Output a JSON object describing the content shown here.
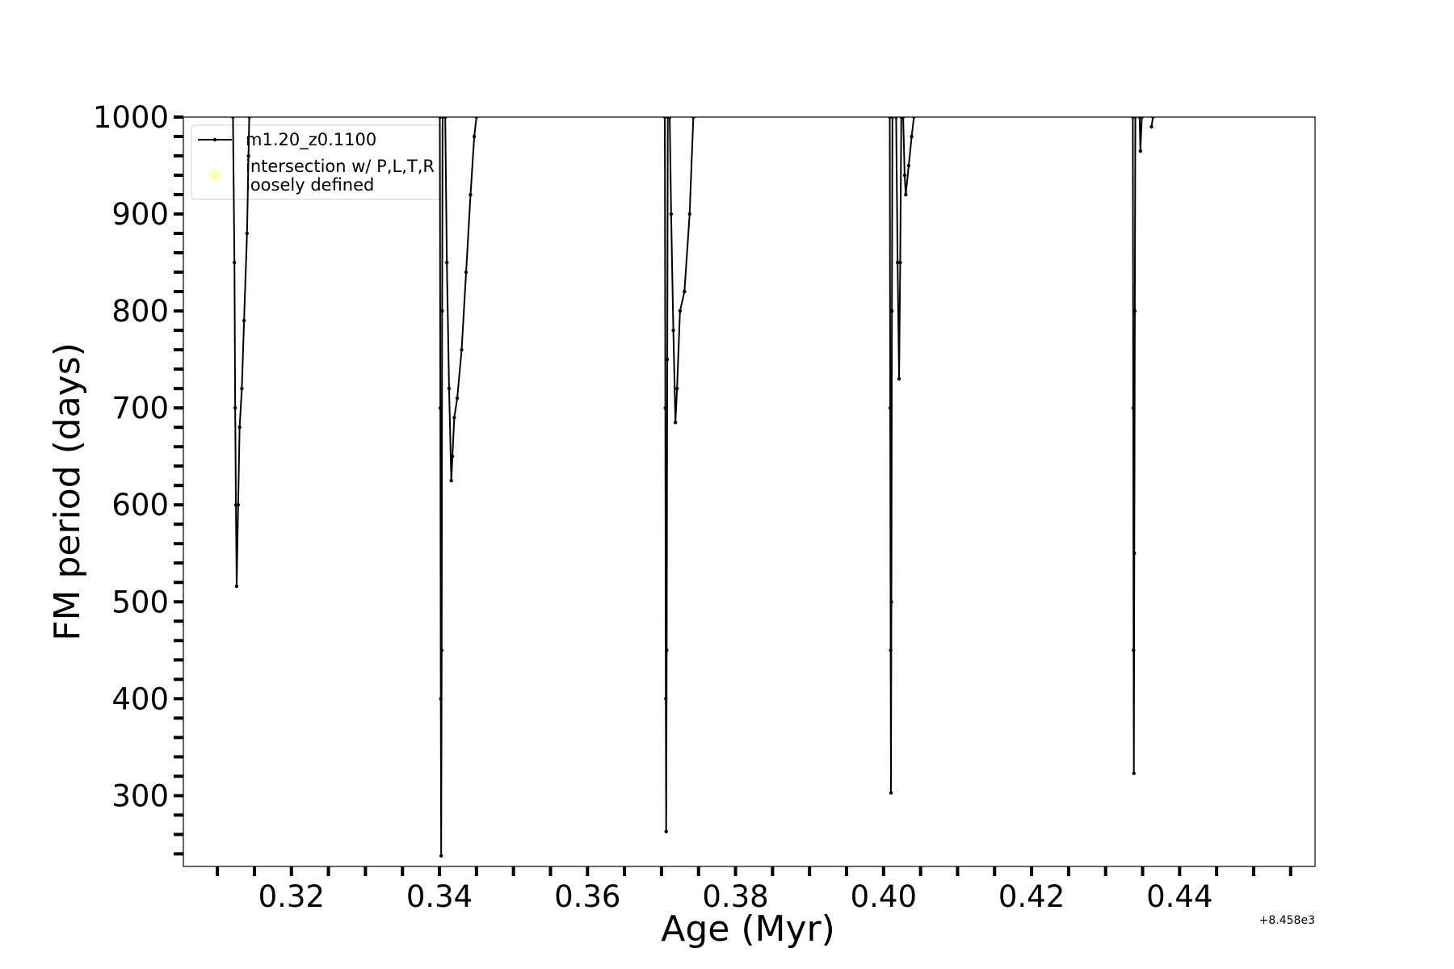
{
  "chart_data": {
    "type": "line",
    "xlabel": "Age (Myr)",
    "ylabel": "FM period (days)",
    "x_offset_text": "+8.458e3",
    "xlim": [
      0.3054,
      0.4583
    ],
    "ylim": [
      227,
      1000
    ],
    "xticks": [
      0.32,
      0.34,
      0.36,
      0.38,
      0.4,
      0.42,
      0.44
    ],
    "xtick_labels": [
      "0.32",
      "0.34",
      "0.36",
      "0.38",
      "0.40",
      "0.42",
      "0.44"
    ],
    "xminorticks": [
      0.31,
      0.315,
      0.325,
      0.33,
      0.335,
      0.345,
      0.35,
      0.355,
      0.365,
      0.37,
      0.375,
      0.385,
      0.39,
      0.395,
      0.405,
      0.41,
      0.415,
      0.425,
      0.43,
      0.435,
      0.445,
      0.45,
      0.455
    ],
    "yticks": [
      300,
      400,
      500,
      600,
      700,
      800,
      900,
      1000
    ],
    "yminorticks": [
      240,
      260,
      280,
      320,
      340,
      360,
      380,
      420,
      440,
      460,
      480,
      520,
      540,
      560,
      580,
      620,
      640,
      660,
      680,
      720,
      740,
      760,
      780,
      820,
      840,
      860,
      880,
      920,
      940,
      960,
      980
    ],
    "legend_position": "upper left",
    "series": [
      {
        "name": "m1.20_z0.1100",
        "color": "#000000",
        "x": [
          0.3121,
          0.3123,
          0.3124,
          0.3125,
          0.3126,
          0.3128,
          0.313,
          0.3133,
          0.3136,
          0.314,
          0.3142,
          0.3143,
          null,
          0.34005,
          0.34012,
          0.34018,
          0.34023,
          0.3403,
          0.34036,
          0.34043,
          null,
          0.34078,
          0.341,
          0.3413,
          0.3416,
          0.34175,
          0.342,
          0.3424,
          0.343,
          0.3436,
          0.3442,
          0.3447,
          0.345,
          null,
          0.37045,
          0.37052,
          0.37058,
          0.37063,
          0.3707,
          0.37078,
          0.37085,
          null,
          0.37111,
          0.3713,
          0.3716,
          0.37188,
          0.3721,
          0.3725,
          0.3731,
          0.3738,
          0.3743,
          null,
          0.40084,
          0.4009,
          0.40096,
          0.401,
          0.40106,
          0.40113,
          0.4012,
          null,
          0.4017,
          0.4019,
          0.4021,
          0.40225,
          0.4024,
          null,
          0.40265,
          0.40285,
          0.403,
          0.4034,
          0.4038,
          0.4041,
          null,
          0.43368,
          0.43373,
          0.43378,
          0.43382,
          0.43388,
          0.43395,
          0.43402,
          null,
          0.4346,
          0.4347,
          0.4349,
          null,
          0.4362,
          0.4364
        ],
        "values": [
          1000,
          850,
          700,
          600,
          516,
          600,
          680,
          720,
          790,
          880,
          960,
          1000,
          null,
          1000,
          700,
          400,
          238,
          450,
          800,
          1000,
          null,
          1000,
          850,
          720,
          625,
          650,
          690,
          710,
          760,
          840,
          920,
          980,
          1000,
          null,
          1000,
          700,
          400,
          263,
          450,
          750,
          1000,
          null,
          1000,
          900,
          780,
          685,
          720,
          800,
          820,
          900,
          1000,
          null,
          1000,
          700,
          450,
          303,
          500,
          800,
          1000,
          null,
          1000,
          850,
          730,
          850,
          1000,
          null,
          1000,
          940,
          920,
          950,
          980,
          1000,
          null,
          1000,
          700,
          450,
          323,
          550,
          800,
          1000,
          null,
          1000,
          965,
          1000,
          null,
          990,
          1000
        ]
      }
    ],
    "legend_markers": [
      {
        "name": "intersection w/ P,L,T,R\nloosely defined",
        "color": "#ffffb3"
      }
    ]
  }
}
